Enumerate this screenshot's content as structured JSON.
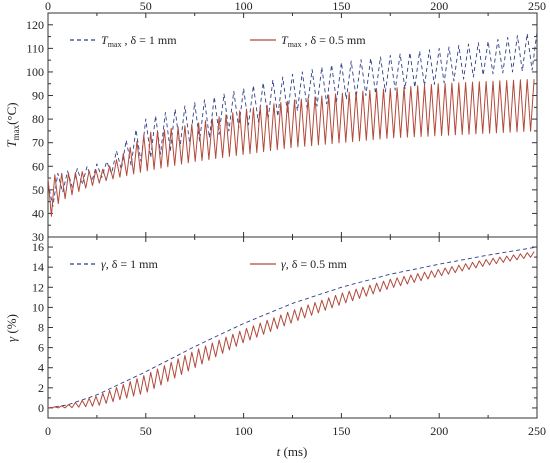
{
  "chart_data": [
    {
      "type": "line",
      "panel": "top",
      "ylabel_main": "T",
      "ylabel_sub": "max",
      "ylabel_unit": "(°C)",
      "xlim": [
        0,
        250
      ],
      "ylim": [
        30,
        125
      ],
      "xticks": [
        0,
        50,
        100,
        150,
        200,
        250
      ],
      "yticks": [
        30,
        40,
        50,
        60,
        70,
        80,
        90,
        100,
        110,
        120
      ],
      "legend": "top-left",
      "series": [
        {
          "name": "T_max , δ = 1 mm",
          "legend_main": "T",
          "legend_sub": "max",
          "legend_rest": " , δ = 1 mm",
          "style": "dashed",
          "color": "#2f3f86",
          "cycle_ms": 5,
          "x": [
            0,
            5,
            10,
            20,
            30,
            50,
            75,
            100,
            125,
            150,
            175,
            200,
            225,
            250
          ],
          "max": [
            53,
            57,
            58,
            60,
            62,
            80,
            87,
            93,
            99,
            104,
            107,
            110,
            113,
            117
          ],
          "min": [
            38,
            48,
            50,
            53,
            56,
            63,
            70,
            77,
            83,
            88,
            92,
            95,
            99,
            101
          ]
        },
        {
          "name": "T_max , δ = 0.5 mm",
          "legend_main": "T",
          "legend_sub": "max",
          "legend_rest": " , δ = 0.5 mm",
          "style": "solid",
          "color": "#b24a3c",
          "cycle_ms": 3.5,
          "x": [
            0,
            5,
            10,
            20,
            30,
            50,
            75,
            100,
            125,
            150,
            175,
            200,
            225,
            250
          ],
          "max": [
            55,
            57,
            57,
            58,
            59,
            74,
            78,
            84,
            88,
            91,
            93,
            95,
            96,
            97
          ],
          "min": [
            36,
            44,
            47,
            51,
            54,
            58,
            62,
            65,
            68,
            70,
            72,
            73,
            74,
            75
          ]
        }
      ]
    },
    {
      "type": "line",
      "panel": "bottom",
      "ylabel_main": "γ",
      "ylabel_unit": " (%)",
      "xlabel_main": "t",
      "xlabel_unit": " (ms)",
      "xlim": [
        0,
        250
      ],
      "ylim": [
        -1,
        17
      ],
      "xticks": [
        0,
        50,
        100,
        150,
        200,
        250
      ],
      "yticks": [
        0,
        2,
        4,
        6,
        8,
        10,
        12,
        14,
        16
      ],
      "legend": "top-left",
      "series": [
        {
          "name": "γ, δ = 1 mm",
          "legend_main": "γ",
          "legend_rest": ", δ = 1 mm",
          "style": "dashed",
          "color": "#2f3f86",
          "x": [
            0,
            10,
            25,
            50,
            75,
            100,
            125,
            150,
            175,
            200,
            225,
            250
          ],
          "y": [
            0,
            0.3,
            1.3,
            3.6,
            6.1,
            8.4,
            10.4,
            12.0,
            13.3,
            14.3,
            15.2,
            16.0
          ]
        },
        {
          "name": "γ, δ = 0.5 mm",
          "legend_main": "γ",
          "legend_rest": ", δ = 0.5 mm",
          "style": "solid",
          "color": "#b24a3c",
          "cycle_ms": 3.5,
          "x": [
            0,
            10,
            25,
            50,
            75,
            100,
            125,
            150,
            175,
            200,
            225,
            250
          ],
          "max": [
            0,
            0.3,
            1.2,
            3.3,
            5.7,
            7.8,
            9.7,
            11.4,
            12.8,
            13.8,
            14.8,
            15.6
          ],
          "min": [
            0,
            0.0,
            0.2,
            1.5,
            4.0,
            6.5,
            8.5,
            10.3,
            11.9,
            13.1,
            14.2,
            15.1
          ]
        }
      ]
    }
  ]
}
